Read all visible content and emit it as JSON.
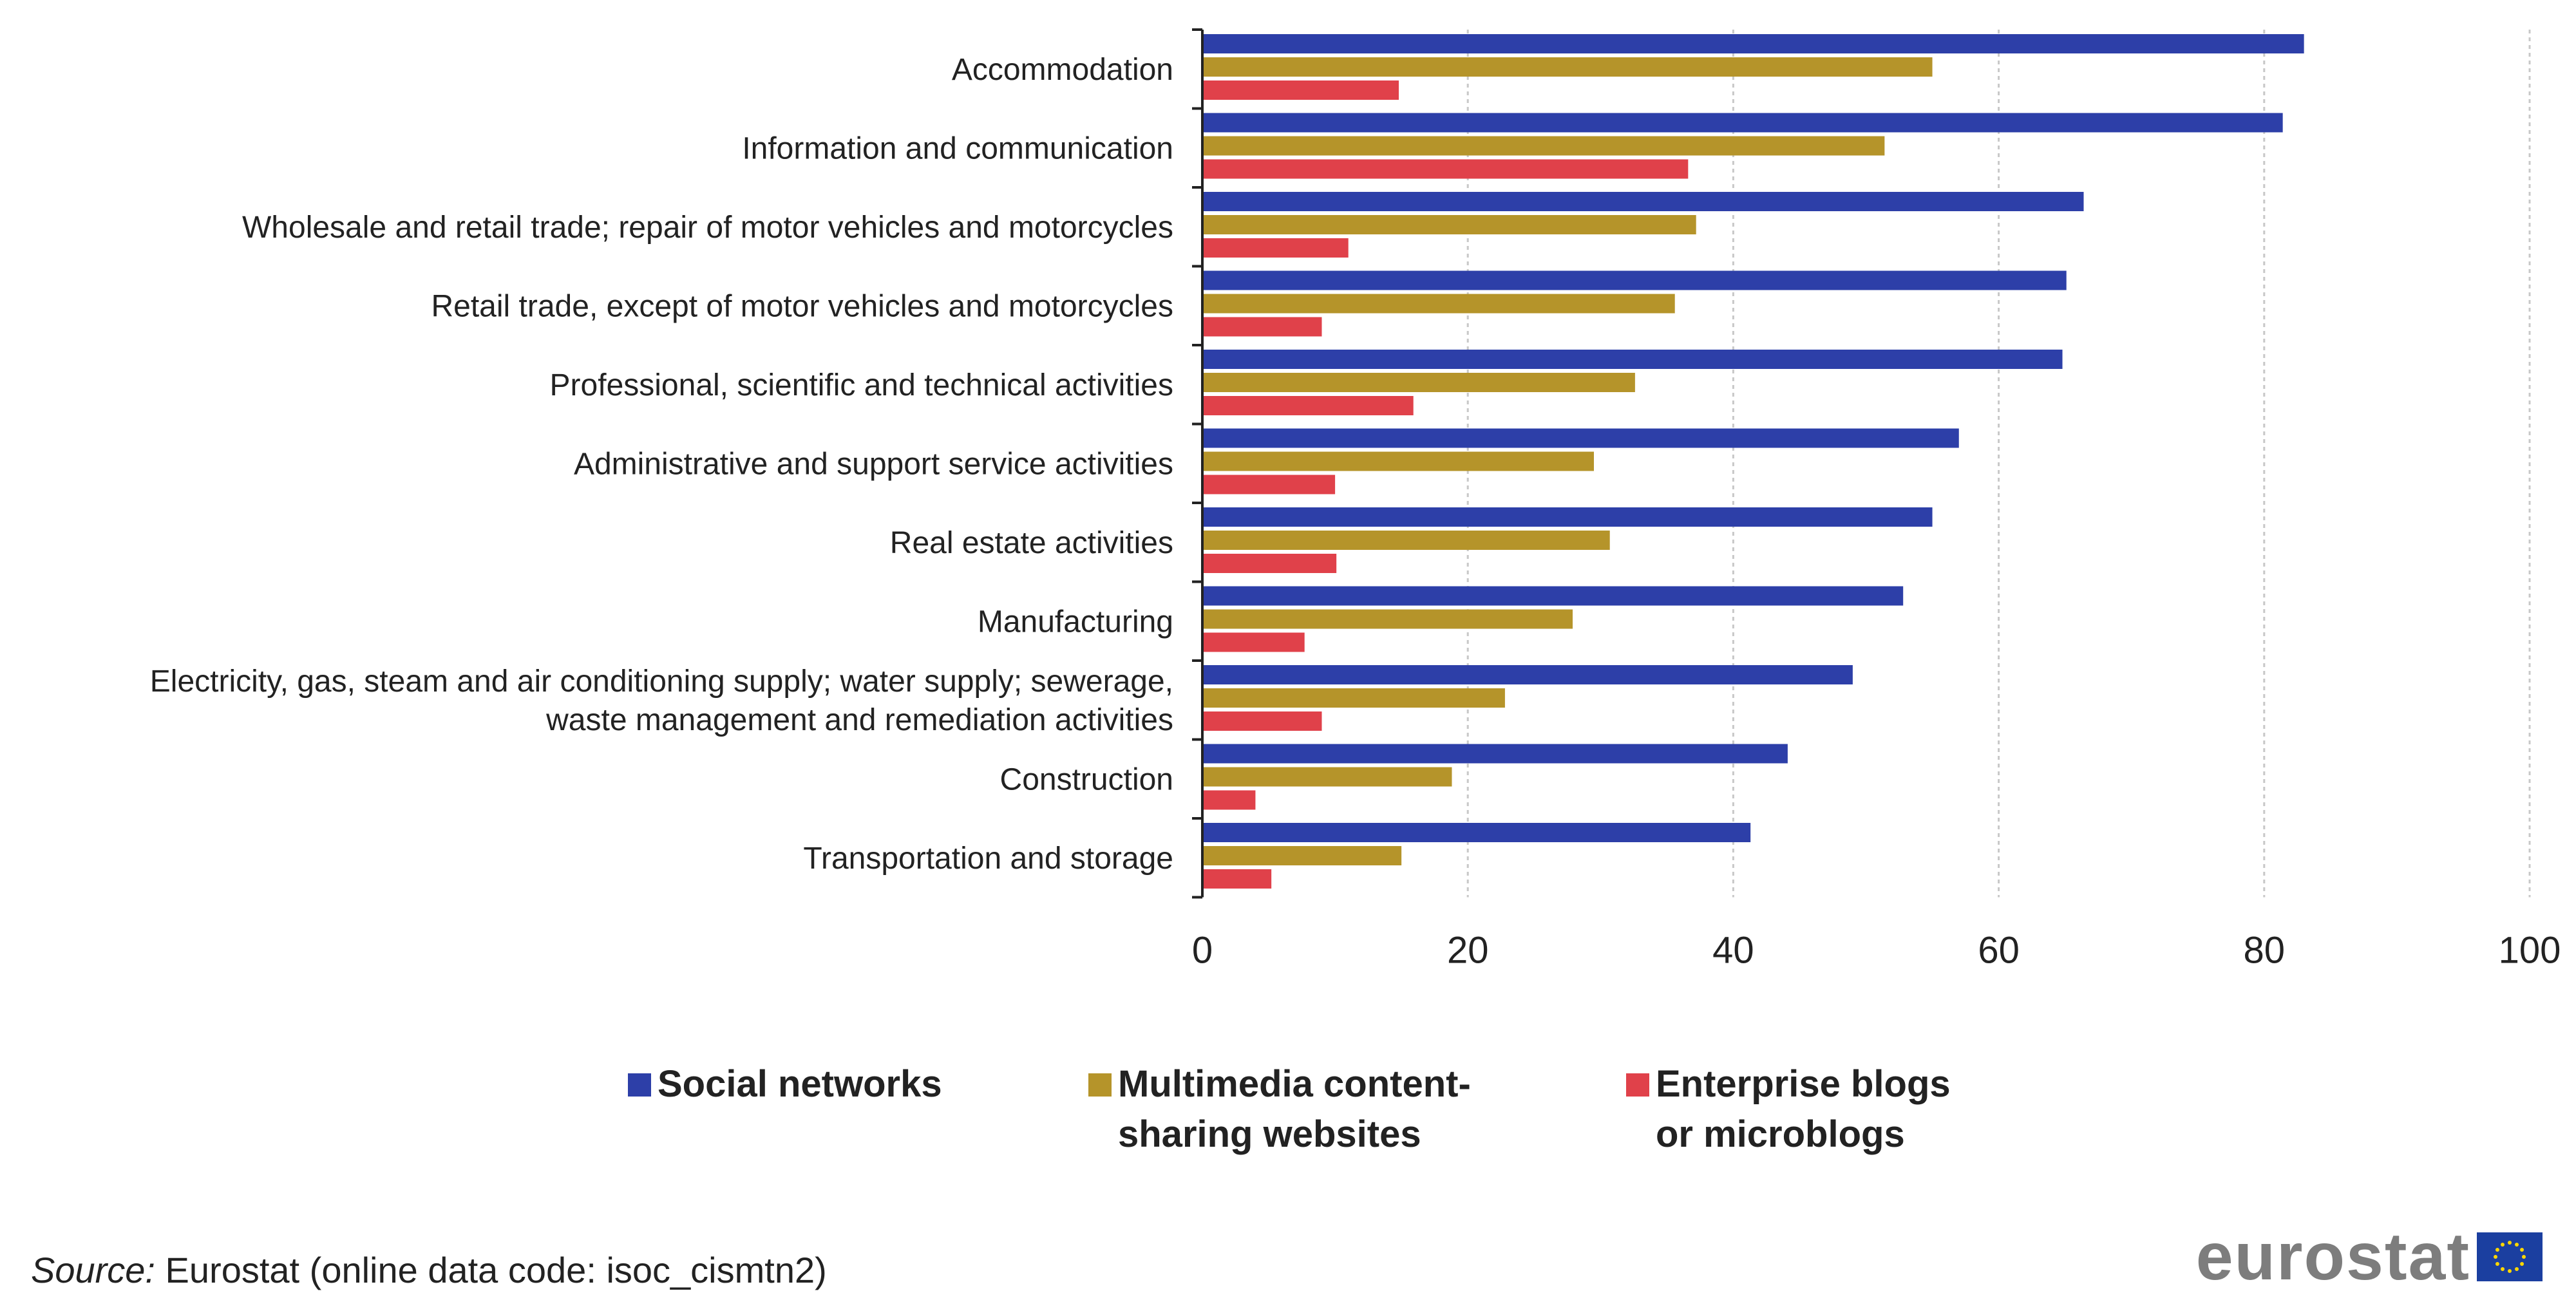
{
  "chart_data": {
    "type": "bar",
    "orientation": "horizontal",
    "categories": [
      "Accommodation",
      "Information and communication",
      "Wholesale and retail trade; repair of motor vehicles and motorcycles",
      "Retail trade, except of motor vehicles and motorcycles",
      "Professional, scientific and technical activities",
      "Administrative and support service activities",
      "Real estate activities",
      "Manufacturing",
      "Electricity, gas, steam and air conditioning supply; water supply; sewerage,\nwaste management and remediation activities",
      "Construction",
      "Transportation and storage"
    ],
    "series": [
      {
        "name": "Social networks",
        "color": "#2d3fa8",
        "values": [
          83,
          81.4,
          66.4,
          65.1,
          64.8,
          57,
          55,
          52.8,
          49,
          44.1,
          41.3
        ]
      },
      {
        "name": "Multimedia content-sharing websites",
        "color": "#b5942a",
        "values": [
          55,
          51.4,
          37.2,
          35.6,
          32.6,
          29.5,
          30.7,
          27.9,
          22.8,
          18.8,
          15
        ]
      },
      {
        "name": "Enterprise blogs or microblogs",
        "color": "#e0414a",
        "values": [
          14.8,
          36.6,
          11,
          9,
          15.9,
          10,
          10.1,
          7.7,
          9,
          4,
          5.2
        ]
      }
    ],
    "xlim": [
      0,
      100
    ],
    "xticks": [
      0,
      20,
      40,
      60,
      80,
      100
    ],
    "grid": true,
    "legend_position": "bottom"
  },
  "legend": [
    {
      "label": "Social networks",
      "color": "#2d3fa8"
    },
    {
      "label": "Multimedia content-\nsharing websites",
      "color": "#b5942a"
    },
    {
      "label": "Enterprise blogs\nor microblogs",
      "color": "#e0414a"
    }
  ],
  "source": {
    "prefix": "Source:",
    "text": " Eurostat (online data code: isoc_cismtn2)"
  },
  "logo": {
    "text": "eurostat",
    "flag_blue": "#1b3fa0",
    "flag_star": "#ffd700"
  }
}
